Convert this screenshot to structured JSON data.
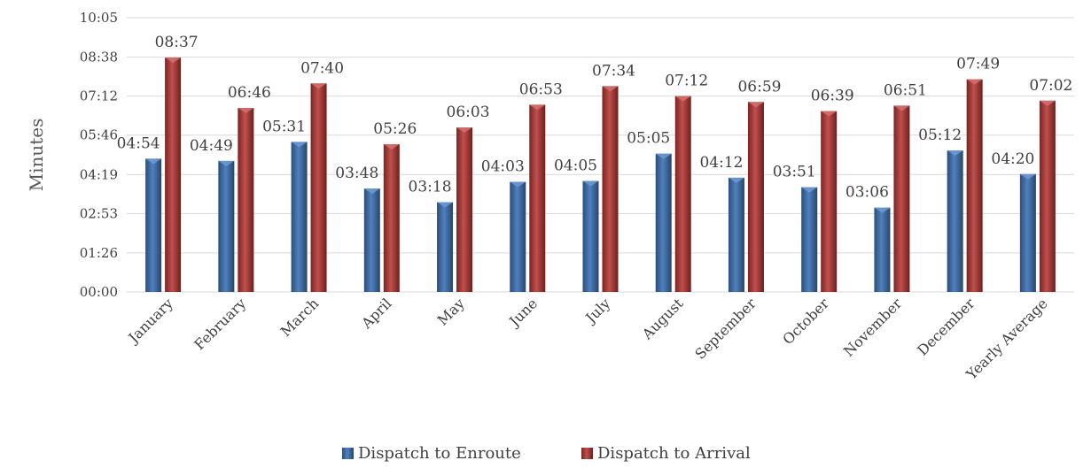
{
  "chart_data": {
    "type": "bar",
    "ylabel": "Minutes",
    "ylim": [
      0,
      605
    ],
    "y_ticks": [
      "00:00",
      "01:26",
      "02:53",
      "04:19",
      "05:46",
      "07:12",
      "08:38",
      "10:05"
    ],
    "y_tick_values": [
      0,
      86,
      173,
      259,
      346,
      432,
      518,
      605
    ],
    "categories": [
      "January",
      "February",
      "March",
      "April",
      "May",
      "June",
      "July",
      "August",
      "September",
      "October",
      "November",
      "December",
      "Yearly Average"
    ],
    "series": [
      {
        "name": "Dispatch to Enroute",
        "color": "#4F81BD",
        "values": [
          294,
          289,
          331,
          228,
          198,
          243,
          245,
          305,
          252,
          231,
          186,
          312,
          260
        ],
        "labels": [
          "04:54",
          "04:49",
          "05:31",
          "03:48",
          "03:18",
          "04:03",
          "04:05",
          "05:05",
          "04:12",
          "03:51",
          "03:06",
          "05:12",
          "04:20"
        ]
      },
      {
        "name": "Dispatch to Arrival",
        "color": "#C0504D",
        "values": [
          517,
          406,
          460,
          326,
          363,
          413,
          454,
          432,
          419,
          399,
          411,
          469,
          422
        ],
        "labels": [
          "08:37",
          "06:46",
          "07:40",
          "05:26",
          "06:03",
          "06:53",
          "07:34",
          "07:12",
          "06:59",
          "06:39",
          "06:51",
          "07:49",
          "07:02"
        ]
      }
    ],
    "grid": true,
    "legend_position": "bottom"
  }
}
